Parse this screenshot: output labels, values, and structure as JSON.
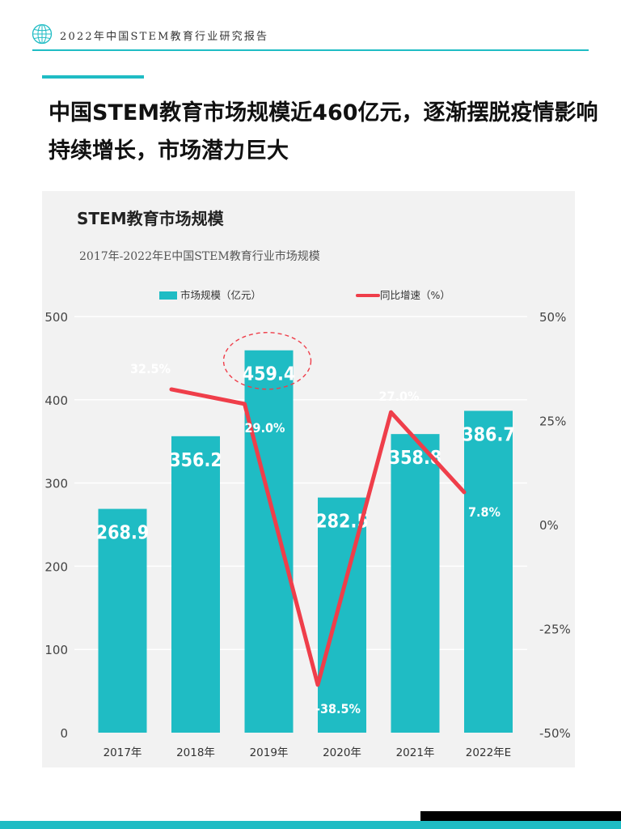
{
  "header": {
    "report_title": "2022年中国STEM教育行业研究报告",
    "logo_icon": "globe-icon"
  },
  "headline": "中国STEM教育市场规模近460亿元，逐渐摆脱疫情影响持续增长，市场潜力巨大",
  "colors": {
    "accent": "#1fbcc4",
    "line": "#ef3e4a"
  },
  "chart_data": {
    "type": "bar",
    "title": "STEM教育市场规模",
    "subtitle": "2017年-2022年E中国STEM教育行业市场规模",
    "categories": [
      "2017年",
      "2018年",
      "2019年",
      "2020年",
      "2021年",
      "2022年E"
    ],
    "series": [
      {
        "name": "市场规模（亿元）",
        "type": "bar",
        "axis": "left",
        "values": [
          268.9,
          356.2,
          459.4,
          282.5,
          358.8,
          386.7
        ],
        "labels": [
          "268.9",
          "356.2",
          "459.4",
          "282.5",
          "358.8",
          "386.7"
        ]
      },
      {
        "name": "同比增速（%）",
        "type": "line",
        "axis": "right",
        "values": [
          null,
          32.5,
          29.0,
          -38.5,
          27.0,
          7.8
        ],
        "labels": [
          "",
          "32.5%",
          "29.0%",
          "-38.5%",
          "27.0%",
          "7.8%"
        ]
      }
    ],
    "y_left": {
      "min": 0,
      "max": 500,
      "ticks": [
        "0",
        "100",
        "200",
        "300",
        "400",
        "500"
      ]
    },
    "y_right": {
      "min": -50,
      "max": 50,
      "ticks": [
        "-50%",
        "-25%",
        "0%",
        "25%",
        "50%"
      ]
    },
    "grid": true,
    "legend_position": "top",
    "highlight_category": "2019年"
  }
}
